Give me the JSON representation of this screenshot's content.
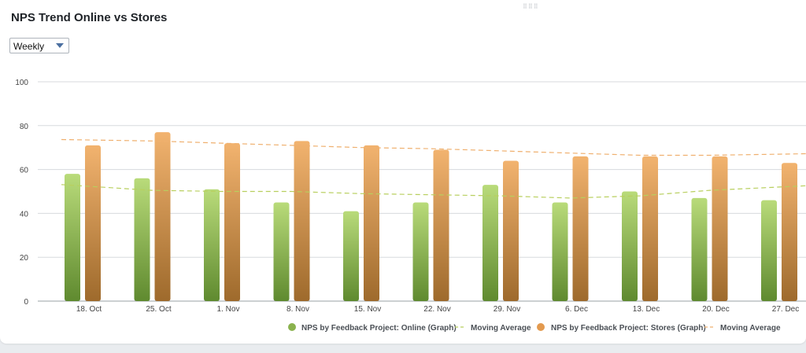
{
  "header": {
    "title": "NPS Trend Online vs Stores",
    "drag_handle": "⠿⠿⠿"
  },
  "period_select": {
    "value": "Weekly"
  },
  "colors": {
    "online": "#8ab24e",
    "stores": "#e39a4f",
    "grid": "#d7dadd",
    "axis_text": "#444444"
  },
  "chart_data": {
    "type": "bar",
    "title": "NPS Trend Online vs Stores",
    "xlabel": "",
    "ylabel": "",
    "ylim": [
      0,
      100
    ],
    "yticks": [
      "0",
      "20",
      "40",
      "60",
      "80",
      "100"
    ],
    "categories": [
      "18. Oct",
      "25. Oct",
      "1. Nov",
      "8. Nov",
      "15. Nov",
      "22. Nov",
      "29. Nov",
      "6. Dec",
      "13. Dec",
      "20. Dec",
      "27. Dec"
    ],
    "series": [
      {
        "name": "NPS by Feedback Project: Online (Graph)",
        "type": "bar",
        "values": [
          58,
          56,
          51,
          45,
          41,
          45,
          53,
          45,
          50,
          47,
          46
        ]
      },
      {
        "name": "Moving Average",
        "type": "line",
        "style": "dashed",
        "values": [
          52.5,
          50.5,
          50,
          50,
          49,
          48.5,
          48,
          47,
          48,
          50.5,
          52
        ]
      },
      {
        "name": "NPS by Feedback Project: Stores (Graph)",
        "type": "bar",
        "values": [
          71,
          77,
          72,
          73,
          71,
          69,
          64,
          66,
          66,
          66,
          63
        ]
      },
      {
        "name": "Moving Average",
        "type": "line",
        "style": "dashed",
        "values": [
          73.5,
          73,
          72,
          71,
          70,
          69.5,
          68.5,
          67.5,
          66.5,
          66.5,
          67
        ]
      }
    ],
    "grid": true,
    "legend": "bottom-right"
  },
  "legend": {
    "items": [
      {
        "label": "NPS by Feedback Project: Online (Graph)",
        "kind": "dot",
        "color": "#8ab24e"
      },
      {
        "label": "Moving Average",
        "kind": "dash",
        "color": "#b8cf5e"
      },
      {
        "label": "NPS by Feedback Project: Stores (Graph)",
        "kind": "dot",
        "color": "#e39a4f"
      },
      {
        "label": "Moving Average",
        "kind": "dash",
        "color": "#efb06f"
      }
    ]
  }
}
